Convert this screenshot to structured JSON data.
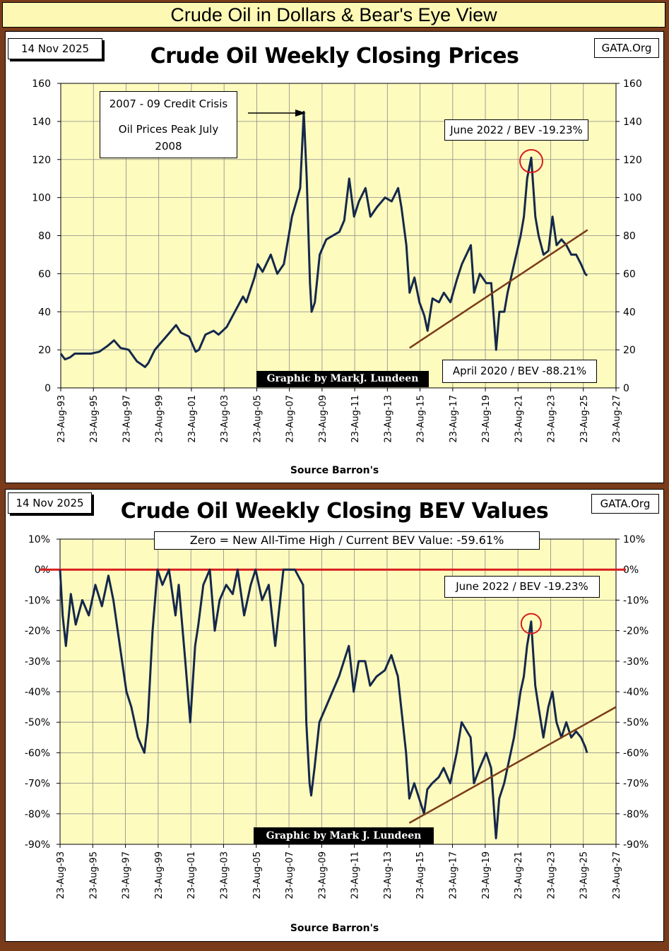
{
  "banner": "Crude Oil in Dollars & Bear's Eye View",
  "chart_data": [
    {
      "type": "line",
      "title": "Crude Oil Weekly Closing Prices",
      "date_label": "14 Nov 2025",
      "site": "GATA.Org",
      "credit": "Graphic by MarkJ. Lundeen",
      "source": "Source Barron's",
      "xlim": [
        1993.64,
        2027.64
      ],
      "ylim": [
        0,
        160
      ],
      "y_ticks": [
        0,
        20,
        40,
        60,
        80,
        100,
        120,
        140,
        160
      ],
      "y_tick_labels": [
        "0",
        "20",
        "40",
        "60",
        "80",
        "100",
        "120",
        "140",
        "160"
      ],
      "x_ticks": [
        1993.64,
        1995.64,
        1997.64,
        1999.64,
        2001.64,
        2003.64,
        2005.64,
        2007.64,
        2009.64,
        2011.64,
        2013.64,
        2015.64,
        2017.64,
        2019.64,
        2021.64,
        2023.64,
        2025.64,
        2027.64
      ],
      "x_tick_labels": [
        "23-Aug-93",
        "23-Aug-95",
        "23-Aug-97",
        "23-Aug-99",
        "23-Aug-01",
        "23-Aug-03",
        "23-Aug-05",
        "23-Aug-07",
        "23-Aug-09",
        "23-Aug-11",
        "23-Aug-13",
        "23-Aug-15",
        "23-Aug-17",
        "23-Aug-19",
        "23-Aug-21",
        "23-Aug-23",
        "23-Aug-25",
        "23-Aug-27"
      ],
      "series": [
        {
          "color": "#14284b",
          "x": [
            1993.64,
            1993.9,
            1994.2,
            1994.5,
            1995.0,
            1995.5,
            1996.0,
            1996.5,
            1996.9,
            1997.3,
            1997.8,
            1998.3,
            1998.8,
            1999.0,
            1999.4,
            1999.8,
            2000.2,
            2000.7,
            2001.0,
            2001.5,
            2001.9,
            2002.1,
            2002.5,
            2003.0,
            2003.3,
            2003.8,
            2004.3,
            2004.8,
            2005.0,
            2005.5,
            2005.7,
            2006.0,
            2006.5,
            2006.9,
            2007.3,
            2007.8,
            2008.0,
            2008.3,
            2008.52,
            2008.7,
            2008.9,
            2009.0,
            2009.2,
            2009.5,
            2009.9,
            2010.3,
            2010.7,
            2011.0,
            2011.3,
            2011.6,
            2011.9,
            2012.3,
            2012.6,
            2013.0,
            2013.5,
            2013.9,
            2014.3,
            2014.5,
            2014.8,
            2015.0,
            2015.3,
            2015.6,
            2015.9,
            2016.1,
            2016.4,
            2016.8,
            2017.1,
            2017.5,
            2017.9,
            2018.2,
            2018.75,
            2018.95,
            2019.3,
            2019.7,
            2020.0,
            2020.3,
            2020.5,
            2020.8,
            2021.0,
            2021.4,
            2021.8,
            2022.0,
            2022.2,
            2022.45,
            2022.7,
            2022.9,
            2023.2,
            2023.5,
            2023.75,
            2024.0,
            2024.3,
            2024.6,
            2024.9,
            2025.2,
            2025.5,
            2025.75,
            2025.87
          ],
          "y": [
            18,
            15,
            16,
            18,
            18,
            18,
            19,
            22,
            25,
            21,
            20,
            14,
            11,
            13,
            20,
            24,
            28,
            33,
            29,
            27,
            19,
            20,
            28,
            30,
            28,
            32,
            40,
            48,
            45,
            58,
            65,
            61,
            70,
            60,
            65,
            90,
            96,
            105,
            145,
            110,
            55,
            40,
            45,
            70,
            78,
            80,
            82,
            88,
            110,
            90,
            98,
            105,
            90,
            95,
            100,
            98,
            105,
            95,
            75,
            50,
            58,
            45,
            38,
            30,
            47,
            45,
            50,
            45,
            57,
            65,
            75,
            50,
            60,
            55,
            55,
            20,
            40,
            40,
            50,
            65,
            80,
            90,
            110,
            121,
            90,
            80,
            70,
            72,
            90,
            75,
            78,
            75,
            70,
            70,
            65,
            60,
            59
          ]
        }
      ],
      "annotations": [
        {
          "text": "2007 - 09 Credit Crisis",
          "text2": "Oil Prices Peak July",
          "text3": "2008"
        },
        {
          "text": "June 2022 / BEV -19.23%"
        },
        {
          "text": "April 2020 / BEV -88.21%"
        }
      ],
      "trendline": {
        "x": [
          2015.0,
          2025.9
        ],
        "y": [
          21,
          83
        ],
        "color": "#7a3b1a"
      },
      "grid": true,
      "background": "#fdfbbe"
    },
    {
      "type": "line",
      "title": "Crude Oil Weekly Closing BEV Values",
      "date_label": "14 Nov 2025",
      "site": "GATA.Org",
      "credit": "Graphic by Mark J. Lundeen",
      "source": "Source Barron's",
      "xlim": [
        1993.64,
        2027.64
      ],
      "ylim": [
        -90,
        10
      ],
      "y_ticks": [
        -90,
        -80,
        -70,
        -60,
        -50,
        -40,
        -30,
        -20,
        -10,
        0,
        10
      ],
      "y_tick_labels": [
        "-90%",
        "-80%",
        "-70%",
        "-60%",
        "-50%",
        "-40%",
        "-30%",
        "-20%",
        "-10%",
        "0%",
        "10%"
      ],
      "x_ticks": [
        1993.64,
        1995.64,
        1997.64,
        1999.64,
        2001.64,
        2003.64,
        2005.64,
        2007.64,
        2009.64,
        2011.64,
        2013.64,
        2015.64,
        2017.64,
        2019.64,
        2021.64,
        2023.64,
        2025.64,
        2027.64
      ],
      "x_tick_labels": [
        "23-Aug-93",
        "23-Aug-95",
        "23-Aug-97",
        "23-Aug-99",
        "23-Aug-01",
        "23-Aug-03",
        "23-Aug-05",
        "23-Aug-07",
        "23-Aug-09",
        "23-Aug-11",
        "23-Aug-13",
        "23-Aug-15",
        "23-Aug-17",
        "23-Aug-19",
        "23-Aug-21",
        "23-Aug-23",
        "23-Aug-25",
        "23-Aug-27"
      ],
      "series": [
        {
          "color": "#14284b",
          "x": [
            1993.64,
            1993.8,
            1994.0,
            1994.3,
            1994.6,
            1995.0,
            1995.4,
            1995.8,
            1996.2,
            1996.6,
            1996.9,
            1997.3,
            1997.7,
            1998.0,
            1998.4,
            1998.8,
            1999.0,
            1999.3,
            1999.6,
            1999.9,
            2000.3,
            2000.7,
            2000.9,
            2001.3,
            2001.6,
            2001.9,
            2002.1,
            2002.4,
            2002.8,
            2003.1,
            2003.4,
            2003.8,
            2004.2,
            2004.5,
            2004.9,
            2005.3,
            2005.6,
            2006.0,
            2006.4,
            2006.8,
            2007.0,
            2007.3,
            2007.7,
            2008.0,
            2008.5,
            2008.7,
            2008.9,
            2009.0,
            2009.2,
            2009.5,
            2009.9,
            2010.3,
            2010.7,
            2011.0,
            2011.3,
            2011.6,
            2011.9,
            2012.3,
            2012.6,
            2013.0,
            2013.5,
            2013.9,
            2014.3,
            2014.5,
            2014.8,
            2015.0,
            2015.3,
            2015.6,
            2015.9,
            2016.1,
            2016.4,
            2016.8,
            2017.1,
            2017.5,
            2017.9,
            2018.2,
            2018.75,
            2018.95,
            2019.3,
            2019.7,
            2020.0,
            2020.3,
            2020.5,
            2020.8,
            2021.0,
            2021.4,
            2021.8,
            2022.0,
            2022.2,
            2022.45,
            2022.7,
            2022.9,
            2023.2,
            2023.5,
            2023.75,
            2024.0,
            2024.3,
            2024.6,
            2024.9,
            2025.2,
            2025.5,
            2025.75,
            2025.87
          ],
          "y": [
            0,
            -15,
            -25,
            -8,
            -18,
            -10,
            -15,
            -5,
            -12,
            -2,
            -10,
            -25,
            -40,
            -45,
            -55,
            -60,
            -50,
            -20,
            0,
            -5,
            0,
            -15,
            -5,
            -30,
            -50,
            -25,
            -18,
            -5,
            0,
            -20,
            -10,
            -5,
            -8,
            0,
            -15,
            -5,
            0,
            -10,
            -5,
            -25,
            -15,
            0,
            0,
            0,
            -5,
            -50,
            -70,
            -74,
            -65,
            -50,
            -45,
            -40,
            -35,
            -30,
            -25,
            -40,
            -30,
            -30,
            -38,
            -35,
            -33,
            -28,
            -35,
            -45,
            -60,
            -75,
            -70,
            -75,
            -80,
            -72,
            -70,
            -68,
            -65,
            -70,
            -60,
            -50,
            -55,
            -70,
            -65,
            -60,
            -65,
            -88,
            -75,
            -70,
            -65,
            -55,
            -40,
            -35,
            -25,
            -17,
            -38,
            -45,
            -55,
            -45,
            -40,
            -50,
            -55,
            -50,
            -55,
            -53,
            -55,
            -58,
            -60
          ]
        }
      ],
      "reference_line": {
        "y": 0,
        "color": "#d81e1e"
      },
      "annotations": [
        {
          "text": "Zero = New All-Time High / Current BEV Value:  -59.61%"
        },
        {
          "text": "June 2022 / BEV -19.23%"
        }
      ],
      "trendline": {
        "x": [
          2015.0,
          2027.64
        ],
        "y": [
          -83,
          -45
        ],
        "color": "#7a3b1a"
      },
      "grid": true,
      "background": "#fdfbbe"
    }
  ]
}
